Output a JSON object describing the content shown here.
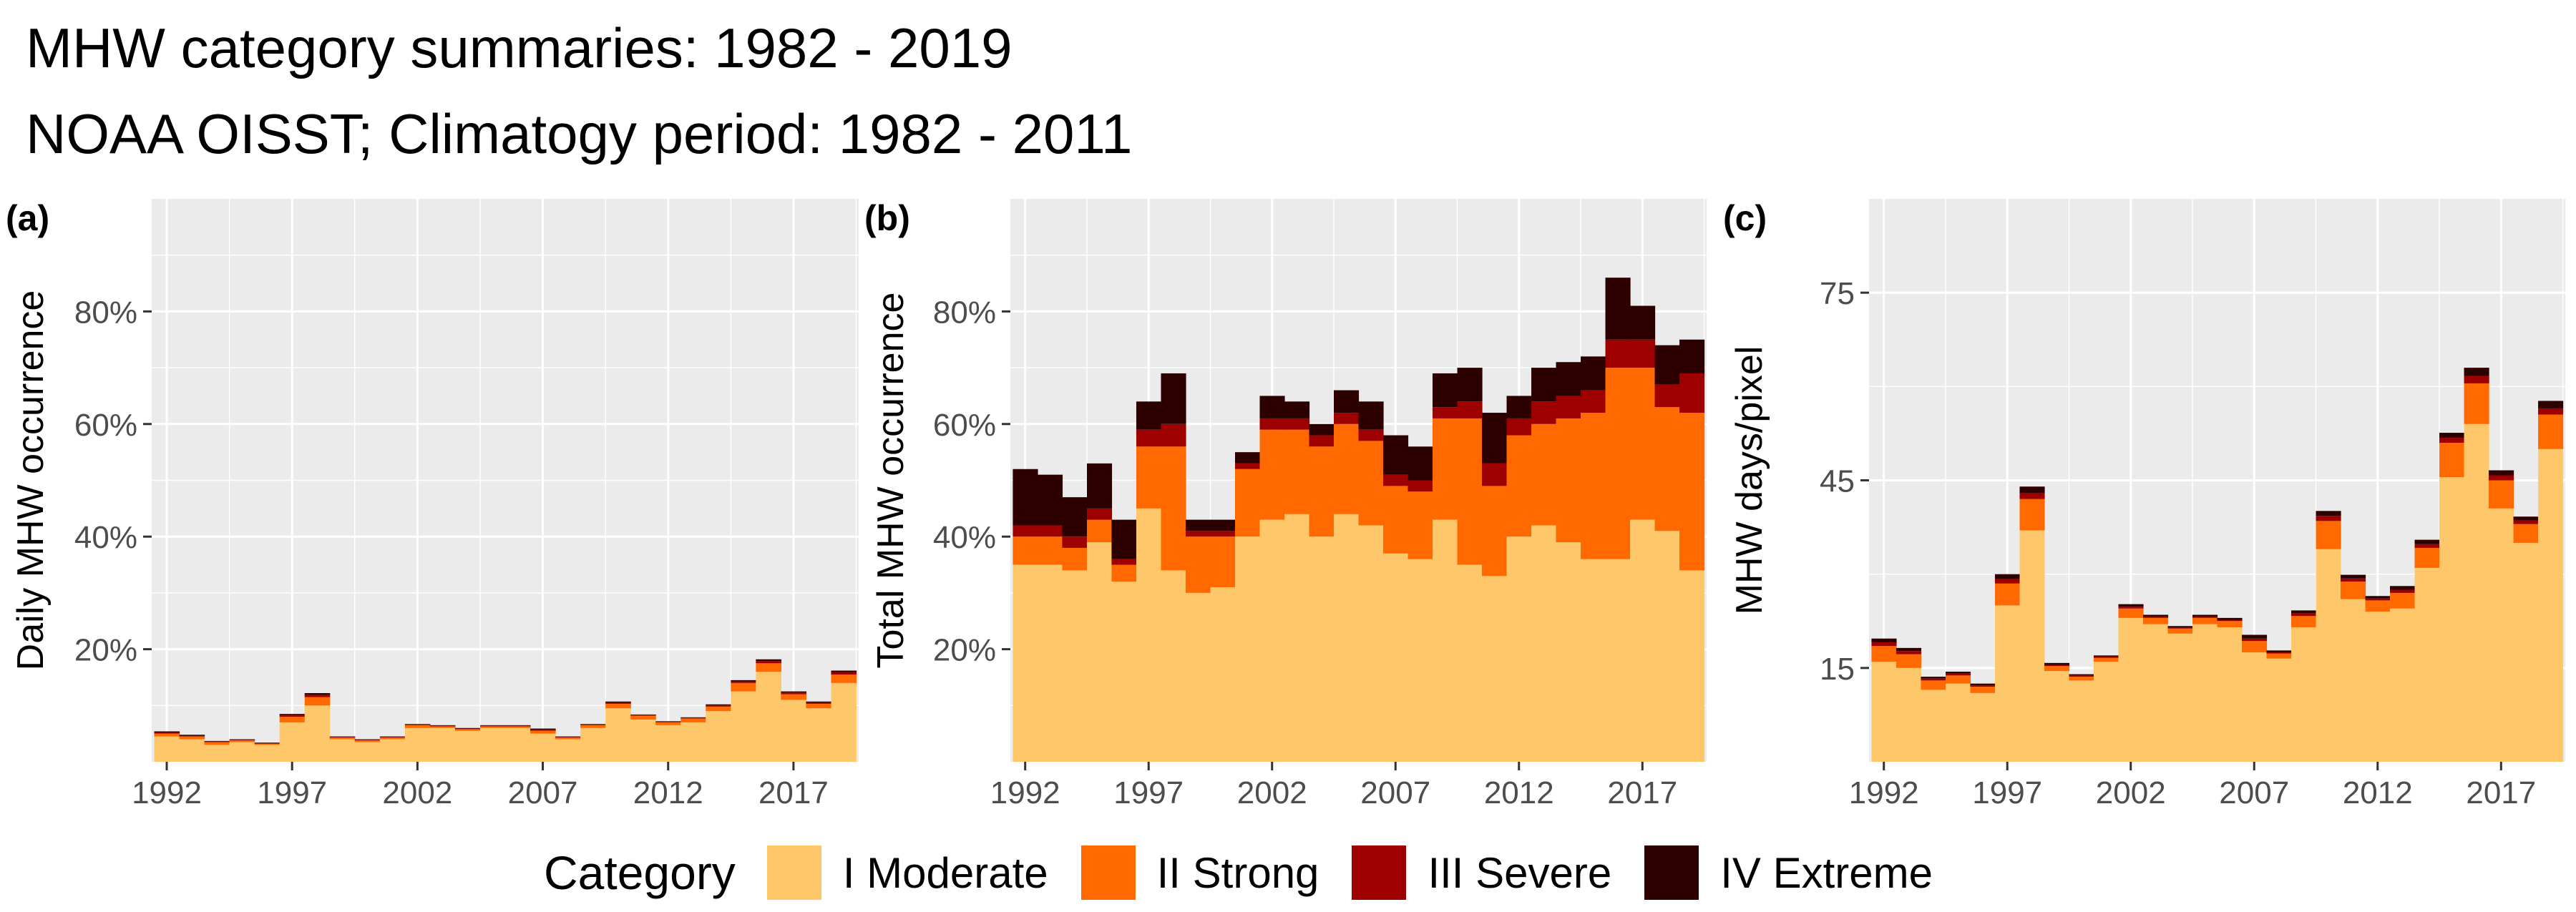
{
  "title": "MHW category summaries: 1982 - 2019",
  "subtitle": "NOAA OISST; Climatogy period: 1982 - 2011",
  "legend": {
    "title": "Category",
    "items": [
      {
        "label": "I Moderate",
        "color": "#FEC86A"
      },
      {
        "label": "II Strong",
        "color": "#FF6900"
      },
      {
        "label": "III Severe",
        "color": "#9E0000"
      },
      {
        "label": "IV Extreme",
        "color": "#2D0000"
      }
    ]
  },
  "chart_data": [
    {
      "type": "bar",
      "stacked": true,
      "panel_tag": "(a)",
      "ylabel": "Daily MHW occurrence",
      "xlabel": "",
      "ylim": [
        0,
        100
      ],
      "y_ticks": [
        20,
        40,
        60,
        80
      ],
      "y_tick_labels": [
        "20%",
        "40%",
        "60%",
        "80%"
      ],
      "x_ticks": [
        1992,
        1997,
        2002,
        2007,
        2012,
        2017
      ],
      "x": [
        1992,
        1993,
        1994,
        1995,
        1996,
        1997,
        1998,
        1999,
        2000,
        2001,
        2002,
        2003,
        2004,
        2005,
        2006,
        2007,
        2008,
        2009,
        2010,
        2011,
        2012,
        2013,
        2014,
        2015,
        2016,
        2017,
        2018,
        2019
      ],
      "series": [
        {
          "name": "I Moderate",
          "values": [
            4.5,
            4,
            3,
            3.5,
            3,
            7,
            10,
            4,
            3.5,
            4,
            6,
            6,
            5.5,
            6,
            6,
            5,
            4,
            6,
            9.5,
            7.5,
            6.5,
            7,
            9,
            12.5,
            16,
            11,
            9.5,
            14
          ]
        },
        {
          "name": "II Strong",
          "values": [
            0.5,
            0.5,
            0.5,
            0.3,
            0.2,
            1,
            1.5,
            0.3,
            0.3,
            0.3,
            0.5,
            0.3,
            0.3,
            0.3,
            0.3,
            0.5,
            0.3,
            0.5,
            0.8,
            0.7,
            0.5,
            0.7,
            0.8,
            1.5,
            1.5,
            1,
            0.8,
            1.5
          ]
        },
        {
          "name": "III Severe",
          "values": [
            0.2,
            0.1,
            0.1,
            0.1,
            0.1,
            0.3,
            0.4,
            0.1,
            0.1,
            0.1,
            0.1,
            0.1,
            0.1,
            0.1,
            0.1,
            0.2,
            0.1,
            0.1,
            0.2,
            0.1,
            0.1,
            0.1,
            0.2,
            0.3,
            0.4,
            0.3,
            0.2,
            0.4
          ]
        },
        {
          "name": "IV Extreme",
          "values": [
            0.2,
            0.2,
            0.1,
            0.1,
            0.1,
            0.2,
            0.3,
            0.1,
            0.1,
            0.1,
            0.1,
            0.1,
            0.1,
            0.1,
            0.1,
            0.2,
            0.1,
            0.1,
            0.2,
            0.1,
            0.1,
            0.1,
            0.2,
            0.2,
            0.3,
            0.2,
            0.2,
            0.3
          ]
        }
      ]
    },
    {
      "type": "bar",
      "stacked": true,
      "panel_tag": "(b)",
      "ylabel": "Total MHW occurrence",
      "xlabel": "",
      "ylim": [
        0,
        100
      ],
      "y_ticks": [
        20,
        40,
        60,
        80
      ],
      "y_tick_labels": [
        "20%",
        "40%",
        "60%",
        "80%"
      ],
      "x_ticks": [
        1992,
        1997,
        2002,
        2007,
        2012,
        2017
      ],
      "x": [
        1992,
        1993,
        1994,
        1995,
        1996,
        1997,
        1998,
        1999,
        2000,
        2001,
        2002,
        2003,
        2004,
        2005,
        2006,
        2007,
        2008,
        2009,
        2010,
        2011,
        2012,
        2013,
        2014,
        2015,
        2016,
        2017,
        2018,
        2019
      ],
      "series": [
        {
          "name": "I Moderate",
          "values": [
            35,
            35,
            34,
            39,
            32,
            45,
            34,
            30,
            31,
            40,
            43,
            44,
            40,
            44,
            42,
            37,
            36,
            43,
            35,
            33,
            40,
            42,
            39,
            36,
            36,
            43,
            41,
            34
          ]
        },
        {
          "name": "II Strong",
          "values": [
            5,
            5,
            4,
            4,
            3,
            11,
            22,
            10,
            9,
            12,
            16,
            15,
            16,
            16,
            15,
            12,
            12,
            18,
            26,
            16,
            18,
            18,
            22,
            26,
            34,
            27,
            22,
            28
          ]
        },
        {
          "name": "III Severe",
          "values": [
            2,
            2,
            2,
            2,
            1,
            3,
            4,
            1,
            1,
            1,
            2,
            2,
            2,
            2,
            2,
            2,
            2,
            2,
            3,
            4,
            3,
            4,
            4,
            4,
            5,
            5,
            4,
            7
          ]
        },
        {
          "name": "IV Extreme",
          "values": [
            10,
            9,
            7,
            8,
            7,
            5,
            9,
            2,
            2,
            2,
            4,
            3,
            2,
            4,
            5,
            7,
            6,
            6,
            6,
            9,
            4,
            6,
            6,
            6,
            11,
            6,
            7,
            6
          ]
        }
      ]
    },
    {
      "type": "bar",
      "stacked": true,
      "panel_tag": "(c)",
      "ylabel": "MHW days/pixel",
      "xlabel": "",
      "ylim": [
        0,
        90
      ],
      "y_ticks": [
        15,
        45,
        75
      ],
      "y_tick_labels": [
        "15",
        "45",
        "75"
      ],
      "x_ticks": [
        1992,
        1997,
        2002,
        2007,
        2012,
        2017
      ],
      "x": [
        1992,
        1993,
        1994,
        1995,
        1996,
        1997,
        1998,
        1999,
        2000,
        2001,
        2002,
        2003,
        2004,
        2005,
        2006,
        2007,
        2008,
        2009,
        2010,
        2011,
        2012,
        2013,
        2014,
        2015,
        2016,
        2017,
        2018,
        2019
      ],
      "series": [
        {
          "name": "I Moderate",
          "values": [
            16,
            15,
            11.5,
            12.5,
            11,
            25,
            37,
            14.5,
            13,
            16,
            23,
            22,
            20.5,
            22,
            21.5,
            17.5,
            16.5,
            21.5,
            34,
            26,
            24,
            24.5,
            31,
            45.5,
            54,
            40.5,
            35,
            50
          ]
        },
        {
          "name": "II Strong",
          "values": [
            2.5,
            2.2,
            1.5,
            1.3,
            1,
            3.5,
            5,
            0.8,
            0.6,
            0.6,
            1.5,
            1,
            0.8,
            1,
            1,
            1.8,
            0.8,
            1.8,
            4.5,
            2.8,
            1.8,
            2.5,
            3.2,
            5.5,
            6.5,
            4.5,
            3,
            5.5
          ]
        },
        {
          "name": "III Severe",
          "values": [
            0.6,
            0.5,
            0.3,
            0.3,
            0.2,
            0.7,
            1,
            0.2,
            0.2,
            0.2,
            0.3,
            0.2,
            0.2,
            0.2,
            0.2,
            0.4,
            0.2,
            0.4,
            0.8,
            0.5,
            0.3,
            0.5,
            0.6,
            0.8,
            1.2,
            0.8,
            0.6,
            1
          ]
        },
        {
          "name": "IV Extreme",
          "values": [
            0.6,
            0.5,
            0.3,
            0.3,
            0.3,
            0.8,
            1,
            0.3,
            0.2,
            0.2,
            0.4,
            0.3,
            0.2,
            0.3,
            0.3,
            0.6,
            0.3,
            0.5,
            0.8,
            0.6,
            0.4,
            0.6,
            0.7,
            0.8,
            1.3,
            0.8,
            0.6,
            1.2
          ]
        }
      ]
    }
  ]
}
